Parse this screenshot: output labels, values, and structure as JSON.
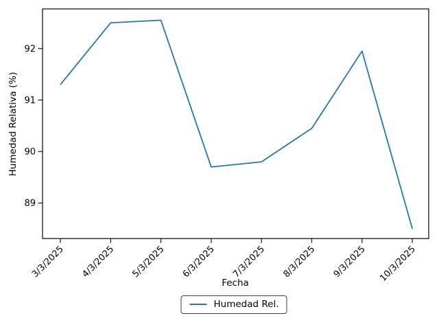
{
  "chart_data": {
    "type": "line",
    "title": "",
    "xlabel": "Fecha",
    "ylabel": "Humedad Relativa (%)",
    "categories": [
      "3/3/2025",
      "4/3/2025",
      "5/3/2025",
      "6/3/2025",
      "7/3/2025",
      "8/3/2025",
      "9/3/2025",
      "10/3/2025"
    ],
    "series": [
      {
        "name": "Humedad Rel.",
        "color": "#1f77b4",
        "values": [
          91.3,
          92.5,
          92.55,
          89.7,
          89.8,
          90.45,
          91.95,
          88.5
        ]
      }
    ],
    "yticks": [
      89,
      90,
      91,
      92
    ],
    "ylim": [
      88.31,
      92.77
    ],
    "grid": false,
    "legend_position": "below-x-axis-center",
    "x_tick_rotation": 45
  },
  "legend": {
    "items": [
      {
        "label": "Humedad Rel.",
        "color": "#1f77b4"
      }
    ]
  },
  "colors": {
    "line": "#1f77b4",
    "background": "#ffffff",
    "axis": "#000000",
    "legend_border": "#3c3c3c"
  }
}
